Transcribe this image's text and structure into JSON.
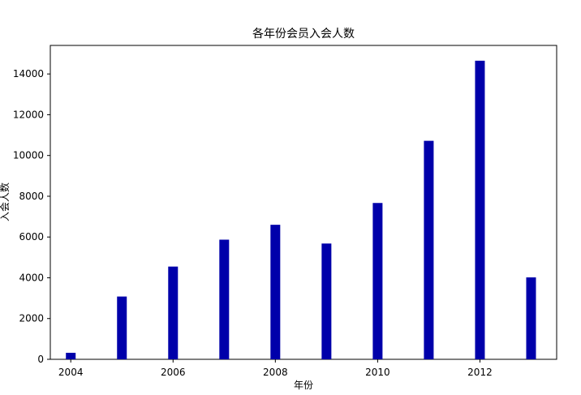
{
  "chart_data": {
    "type": "bar",
    "title": "各年份会员入会人数",
    "xlabel": "年份",
    "ylabel": "入会人数",
    "x": [
      2004,
      2005,
      2006,
      2007,
      2008,
      2009,
      2010,
      2011,
      2012,
      2013
    ],
    "values": [
      320,
      3080,
      4550,
      5870,
      6600,
      5680,
      7670,
      10720,
      14650,
      4020
    ],
    "x_ticks": [
      "2004",
      "2006",
      "2008",
      "2010",
      "2012"
    ],
    "y_ticks": [
      "0",
      "2000",
      "4000",
      "6000",
      "8000",
      "10000",
      "12000",
      "14000"
    ],
    "xlim": [
      2003.6,
      2013.5
    ],
    "ylim": [
      0,
      15400
    ],
    "bar_color": "#0000aa",
    "grid": false
  }
}
